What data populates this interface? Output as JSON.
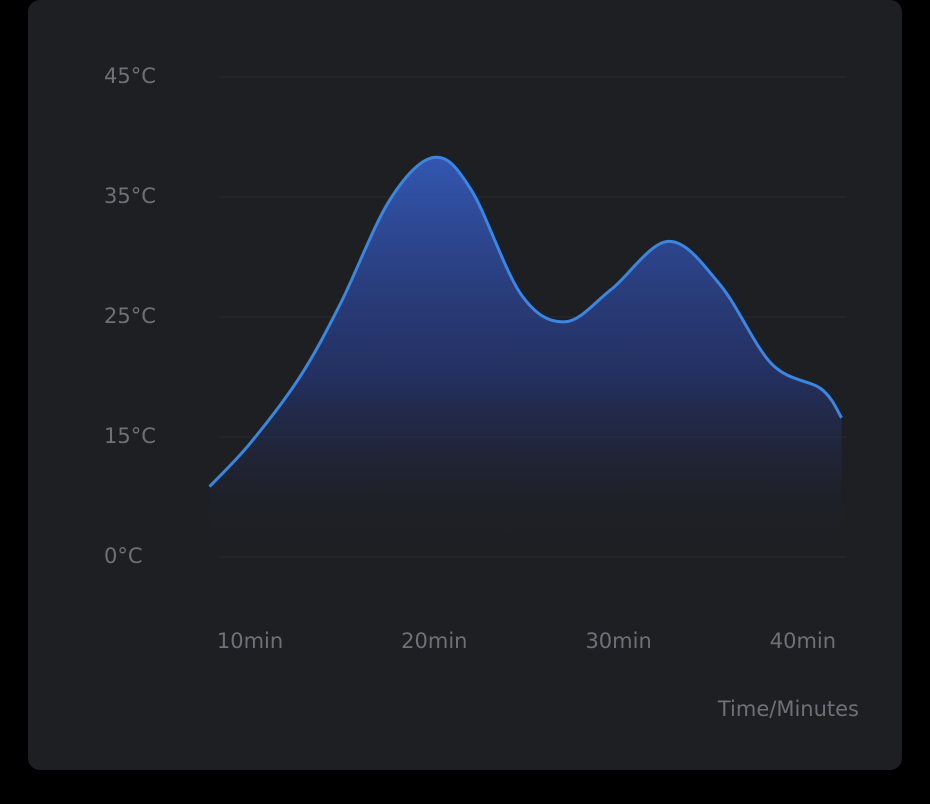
{
  "chart_data": {
    "type": "area",
    "x_label": "Time/Minutes",
    "x": [
      7.8,
      10,
      12.7,
      14.9,
      17.6,
      20,
      22,
      24.7,
      27.1,
      29.6,
      32.7,
      35.5,
      38.3,
      41,
      42.1
    ],
    "series": [
      {
        "color": "#3a86e0",
        "values": [
          8.8,
          14.2,
          20.0,
          26.1,
          34.8,
          38.3,
          35.6,
          26.9,
          24.6,
          27.3,
          31.3,
          27.7,
          21.1,
          19.0,
          16.6
        ]
      }
    ],
    "xlim": [
      7.8,
      42.1
    ],
    "xticks": [
      {
        "value": 10,
        "label": "10min"
      },
      {
        "value": 20,
        "label": "20min"
      },
      {
        "value": 30,
        "label": "30min"
      },
      {
        "value": 40,
        "label": "40min"
      }
    ],
    "ylim": [
      0,
      45
    ],
    "yticks": [
      {
        "value": 0,
        "label": "0°C"
      },
      {
        "value": 15,
        "label": "15°C"
      },
      {
        "value": 25,
        "label": "25°C"
      },
      {
        "value": 35,
        "label": "35°C"
      },
      {
        "value": 45,
        "label": "45°C"
      }
    ],
    "grid": true
  }
}
